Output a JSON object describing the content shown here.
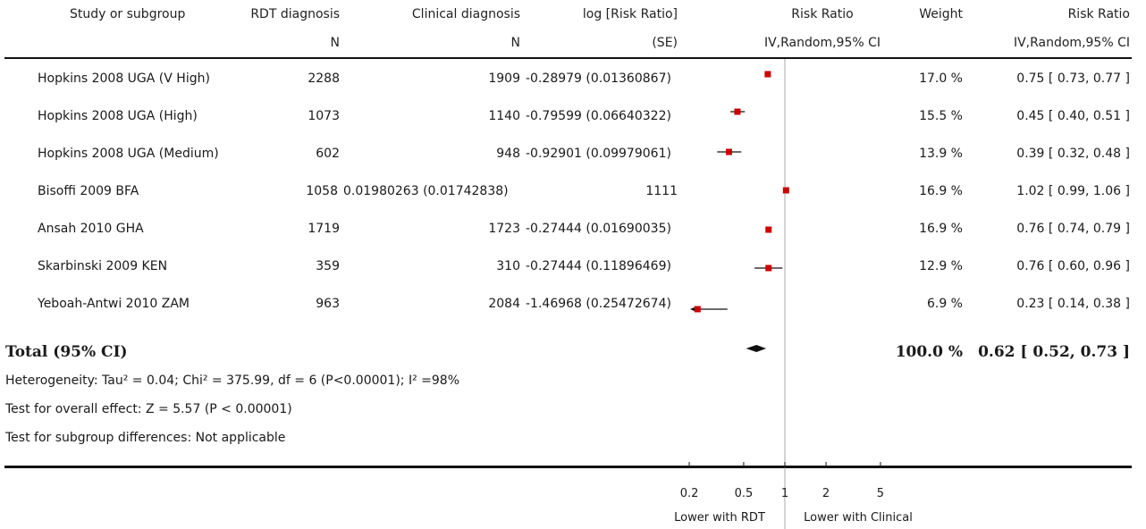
{
  "header": {
    "study": "Study or subgroup",
    "rdt": "RDT diagnosis",
    "rdt_sub": "N",
    "clin": "Clinical diagnosis",
    "clin_sub": "N",
    "logrr": "log [Risk Ratio]",
    "logrr_sub": "(SE)",
    "rr_plot": "Risk Ratio",
    "rr_plot_sub": "IV,Random,95% CI",
    "weight": "Weight",
    "rr_text": "Risk Ratio",
    "rr_text_sub": "IV,Random,95% CI"
  },
  "rows": [
    {
      "study": "Hopkins 2008 UGA (V High)",
      "rdt": "2288",
      "clin": "1909",
      "logrr": "-0.28979 (0.01360867)",
      "weight": "17.0 %",
      "ci": "0.75 [ 0.73, 0.77 ]"
    },
    {
      "study": "Hopkins 2008 UGA (High)",
      "rdt": "1073",
      "clin": "1140",
      "logrr": "-0.79599 (0.06640322)",
      "weight": "15.5 %",
      "ci": "0.45 [ 0.40, 0.51 ]"
    },
    {
      "study": "Hopkins 2008 UGA (Medium)",
      "rdt": "602",
      "clin": "948",
      "logrr": "-0.92901 (0.09979061)",
      "weight": "13.9 %",
      "ci": "0.39 [ 0.32, 0.48 ]"
    },
    {
      "study": "Bisoffi 2009 BFA",
      "rdt": "1058",
      "clin": "1111",
      "logrr": "0.01980263 (0.01742838)",
      "weight": "16.9 %",
      "ci": "1.02 [ 0.99, 1.06 ]",
      "misaligned": true
    },
    {
      "study": "Ansah 2010 GHA",
      "rdt": "1719",
      "clin": "1723",
      "logrr": "-0.27444 (0.01690035)",
      "weight": "16.9 %",
      "ci": "0.76 [ 0.74, 0.79 ]"
    },
    {
      "study": "Skarbinski 2009 KEN",
      "rdt": "359",
      "clin": "310",
      "logrr": "-0.27444 (0.11896469)",
      "weight": "12.9 %",
      "ci": "0.76 [ 0.60, 0.96 ]"
    },
    {
      "study": "Yeboah-Antwi 2010 ZAM",
      "rdt": "963",
      "clin": "2084",
      "logrr": "-1.46968 (0.25472674)",
      "weight": "6.9 %",
      "ci": "0.23 [ 0.14, 0.38 ]"
    }
  ],
  "total": {
    "label": "Total (95% CI)",
    "weight": "100.0 %",
    "ci": "0.62 [ 0.52, 0.73 ]"
  },
  "footer": {
    "heterogeneity": "Heterogeneity: Tau² = 0.04; Chi² = 375.99, df = 6 (P<0.00001); I² =98%",
    "overall": "Test for overall effect: Z = 5.57 (P < 0.00001)",
    "subgroup": "Test for subgroup differences: Not applicable"
  },
  "axis": {
    "ticks": [
      "0.2",
      "0.5",
      "1",
      "2",
      "5"
    ],
    "left_label": "Lower with RDT",
    "right_label": "Lower with Clinical"
  },
  "colors": {
    "marker": "#cc0000",
    "line": "#111111",
    "ref_line": "#aaaaaa"
  },
  "chart_data": {
    "type": "scatter",
    "scale": "log",
    "xlim": [
      0.2,
      5
    ],
    "ticks": [
      0.2,
      0.5,
      1,
      2,
      5
    ],
    "reference": 1,
    "studies": [
      {
        "study": "Hopkins 2008 UGA (V High)",
        "rr": 0.75,
        "lo": 0.73,
        "hi": 0.77,
        "weight": 17.0
      },
      {
        "study": "Hopkins 2008 UGA (High)",
        "rr": 0.45,
        "lo": 0.4,
        "hi": 0.51,
        "weight": 15.5
      },
      {
        "study": "Hopkins 2008 UGA (Medium)",
        "rr": 0.39,
        "lo": 0.32,
        "hi": 0.48,
        "weight": 13.9
      },
      {
        "study": "Bisoffi 2009 BFA",
        "rr": 1.02,
        "lo": 0.99,
        "hi": 1.06,
        "weight": 16.9
      },
      {
        "study": "Ansah 2010 GHA",
        "rr": 0.76,
        "lo": 0.74,
        "hi": 0.79,
        "weight": 16.9
      },
      {
        "study": "Skarbinski 2009 KEN",
        "rr": 0.76,
        "lo": 0.6,
        "hi": 0.96,
        "weight": 12.9
      },
      {
        "study": "Yeboah-Antwi 2010 ZAM",
        "rr": 0.23,
        "lo": 0.14,
        "hi": 0.38,
        "weight": 6.9
      }
    ],
    "pooled": {
      "rr": 0.62,
      "lo": 0.52,
      "hi": 0.73
    }
  }
}
